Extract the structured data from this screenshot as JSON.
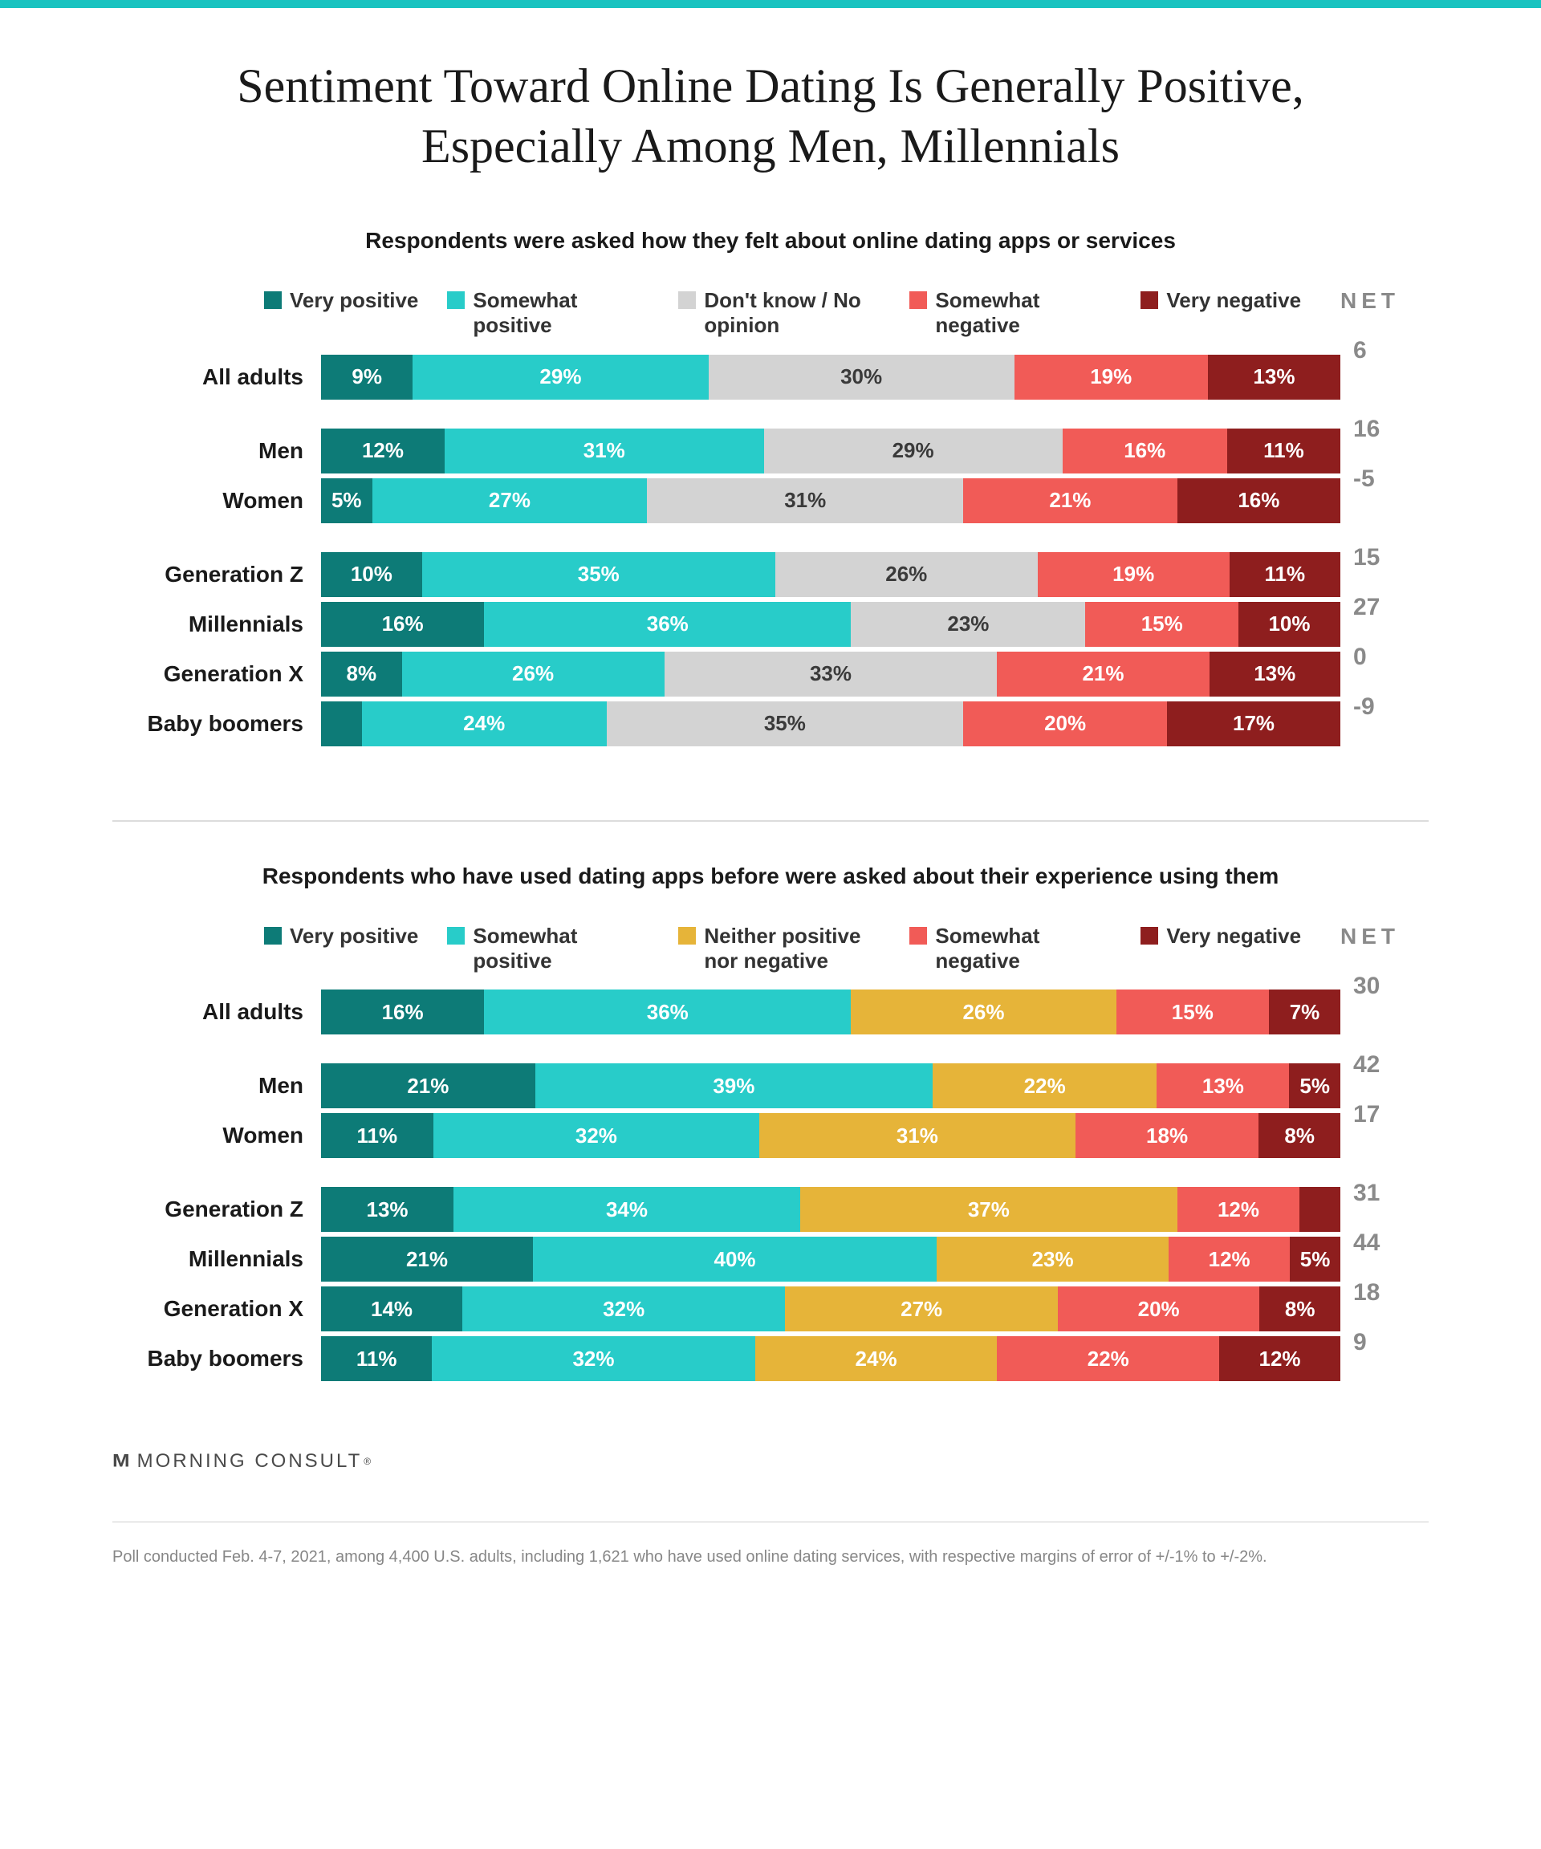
{
  "accent_bar_color": "#19c3c0",
  "background_color": "#ffffff",
  "title": "Sentiment Toward Online Dating Is Generally Positive, Especially Among Men, Millennials",
  "title_color": "#1a1a1a",
  "title_fontsize": 60,
  "brand": "MORNING CONSULT",
  "brand_color": "#4a4a4a",
  "footnote": "Poll conducted Feb. 4-7, 2021, among 4,400 U.S. adults, including 1,621 who have used online dating services, with respective margins of error of +/-1% to +/-2%.",
  "footnote_color": "#878787",
  "net_header": "NET",
  "net_color": "#8a8a8a",
  "row_label_fontsize": 28,
  "seg_fontsize": 26,
  "seg_text_light": "#ffffff",
  "seg_text_dark": "#3a3a3a",
  "sections": [
    {
      "subtitle": "Respondents were asked how they felt about online dating apps or services",
      "legend": [
        {
          "label": "Very positive",
          "color": "#0d7b77"
        },
        {
          "label": "Somewhat positive",
          "color": "#28ccc9"
        },
        {
          "label": "Don't know / No opinion",
          "color": "#d3d3d3"
        },
        {
          "label": "Somewhat negative",
          "color": "#f15b57"
        },
        {
          "label": "Very negative",
          "color": "#8e1e1e"
        }
      ],
      "groups": [
        [
          {
            "label": "All adults",
            "net": "6",
            "segs": [
              {
                "v": 9,
                "t": "9%",
                "c": "#0d7b77",
                "tc": "#ffffff"
              },
              {
                "v": 29,
                "t": "29%",
                "c": "#28ccc9",
                "tc": "#ffffff"
              },
              {
                "v": 30,
                "t": "30%",
                "c": "#d3d3d3",
                "tc": "#3a3a3a"
              },
              {
                "v": 19,
                "t": "19%",
                "c": "#f15b57",
                "tc": "#ffffff"
              },
              {
                "v": 13,
                "t": "13%",
                "c": "#8e1e1e",
                "tc": "#ffffff"
              }
            ]
          }
        ],
        [
          {
            "label": "Men",
            "net": "16",
            "segs": [
              {
                "v": 12,
                "t": "12%",
                "c": "#0d7b77",
                "tc": "#ffffff"
              },
              {
                "v": 31,
                "t": "31%",
                "c": "#28ccc9",
                "tc": "#ffffff"
              },
              {
                "v": 29,
                "t": "29%",
                "c": "#d3d3d3",
                "tc": "#3a3a3a"
              },
              {
                "v": 16,
                "t": "16%",
                "c": "#f15b57",
                "tc": "#ffffff"
              },
              {
                "v": 11,
                "t": "11%",
                "c": "#8e1e1e",
                "tc": "#ffffff"
              }
            ]
          },
          {
            "label": "Women",
            "net": "-5",
            "segs": [
              {
                "v": 5,
                "t": "5%",
                "c": "#0d7b77",
                "tc": "#ffffff"
              },
              {
                "v": 27,
                "t": "27%",
                "c": "#28ccc9",
                "tc": "#ffffff"
              },
              {
                "v": 31,
                "t": "31%",
                "c": "#d3d3d3",
                "tc": "#3a3a3a"
              },
              {
                "v": 21,
                "t": "21%",
                "c": "#f15b57",
                "tc": "#ffffff"
              },
              {
                "v": 16,
                "t": "16%",
                "c": "#8e1e1e",
                "tc": "#ffffff"
              }
            ]
          }
        ],
        [
          {
            "label": "Generation Z",
            "net": "15",
            "segs": [
              {
                "v": 10,
                "t": "10%",
                "c": "#0d7b77",
                "tc": "#ffffff"
              },
              {
                "v": 35,
                "t": "35%",
                "c": "#28ccc9",
                "tc": "#ffffff"
              },
              {
                "v": 26,
                "t": "26%",
                "c": "#d3d3d3",
                "tc": "#3a3a3a"
              },
              {
                "v": 19,
                "t": "19%",
                "c": "#f15b57",
                "tc": "#ffffff"
              },
              {
                "v": 11,
                "t": "11%",
                "c": "#8e1e1e",
                "tc": "#ffffff"
              }
            ]
          },
          {
            "label": "Millennials",
            "net": "27",
            "segs": [
              {
                "v": 16,
                "t": "16%",
                "c": "#0d7b77",
                "tc": "#ffffff"
              },
              {
                "v": 36,
                "t": "36%",
                "c": "#28ccc9",
                "tc": "#ffffff"
              },
              {
                "v": 23,
                "t": "23%",
                "c": "#d3d3d3",
                "tc": "#3a3a3a"
              },
              {
                "v": 15,
                "t": "15%",
                "c": "#f15b57",
                "tc": "#ffffff"
              },
              {
                "v": 10,
                "t": "10%",
                "c": "#8e1e1e",
                "tc": "#ffffff"
              }
            ]
          },
          {
            "label": "Generation X",
            "net": "0",
            "segs": [
              {
                "v": 8,
                "t": "8%",
                "c": "#0d7b77",
                "tc": "#ffffff"
              },
              {
                "v": 26,
                "t": "26%",
                "c": "#28ccc9",
                "tc": "#ffffff"
              },
              {
                "v": 33,
                "t": "33%",
                "c": "#d3d3d3",
                "tc": "#3a3a3a"
              },
              {
                "v": 21,
                "t": "21%",
                "c": "#f15b57",
                "tc": "#ffffff"
              },
              {
                "v": 13,
                "t": "13%",
                "c": "#8e1e1e",
                "tc": "#ffffff"
              }
            ]
          },
          {
            "label": "Baby boomers",
            "net": "-9",
            "segs": [
              {
                "v": 4,
                "t": "",
                "c": "#0d7b77",
                "tc": "#ffffff"
              },
              {
                "v": 24,
                "t": "24%",
                "c": "#28ccc9",
                "tc": "#ffffff"
              },
              {
                "v": 35,
                "t": "35%",
                "c": "#d3d3d3",
                "tc": "#3a3a3a"
              },
              {
                "v": 20,
                "t": "20%",
                "c": "#f15b57",
                "tc": "#ffffff"
              },
              {
                "v": 17,
                "t": "17%",
                "c": "#8e1e1e",
                "tc": "#ffffff"
              }
            ]
          }
        ]
      ]
    },
    {
      "subtitle": "Respondents who have used dating apps before were asked about their experience using them",
      "legend": [
        {
          "label": "Very positive",
          "color": "#0d7b77"
        },
        {
          "label": "Somewhat positive",
          "color": "#28ccc9"
        },
        {
          "label": "Neither positive nor negative",
          "color": "#e6b439"
        },
        {
          "label": "Somewhat negative",
          "color": "#f15b57"
        },
        {
          "label": "Very negative",
          "color": "#8e1e1e"
        }
      ],
      "groups": [
        [
          {
            "label": "All adults",
            "net": "30",
            "segs": [
              {
                "v": 16,
                "t": "16%",
                "c": "#0d7b77",
                "tc": "#ffffff"
              },
              {
                "v": 36,
                "t": "36%",
                "c": "#28ccc9",
                "tc": "#ffffff"
              },
              {
                "v": 26,
                "t": "26%",
                "c": "#e6b439",
                "tc": "#ffffff"
              },
              {
                "v": 15,
                "t": "15%",
                "c": "#f15b57",
                "tc": "#ffffff"
              },
              {
                "v": 7,
                "t": "7%",
                "c": "#8e1e1e",
                "tc": "#ffffff"
              }
            ]
          }
        ],
        [
          {
            "label": "Men",
            "net": "42",
            "segs": [
              {
                "v": 21,
                "t": "21%",
                "c": "#0d7b77",
                "tc": "#ffffff"
              },
              {
                "v": 39,
                "t": "39%",
                "c": "#28ccc9",
                "tc": "#ffffff"
              },
              {
                "v": 22,
                "t": "22%",
                "c": "#e6b439",
                "tc": "#ffffff"
              },
              {
                "v": 13,
                "t": "13%",
                "c": "#f15b57",
                "tc": "#ffffff"
              },
              {
                "v": 5,
                "t": "5%",
                "c": "#8e1e1e",
                "tc": "#ffffff"
              }
            ]
          },
          {
            "label": "Women",
            "net": "17",
            "segs": [
              {
                "v": 11,
                "t": "11%",
                "c": "#0d7b77",
                "tc": "#ffffff"
              },
              {
                "v": 32,
                "t": "32%",
                "c": "#28ccc9",
                "tc": "#ffffff"
              },
              {
                "v": 31,
                "t": "31%",
                "c": "#e6b439",
                "tc": "#ffffff"
              },
              {
                "v": 18,
                "t": "18%",
                "c": "#f15b57",
                "tc": "#ffffff"
              },
              {
                "v": 8,
                "t": "8%",
                "c": "#8e1e1e",
                "tc": "#ffffff"
              }
            ]
          }
        ],
        [
          {
            "label": "Generation Z",
            "net": "31",
            "segs": [
              {
                "v": 13,
                "t": "13%",
                "c": "#0d7b77",
                "tc": "#ffffff"
              },
              {
                "v": 34,
                "t": "34%",
                "c": "#28ccc9",
                "tc": "#ffffff"
              },
              {
                "v": 37,
                "t": "37%",
                "c": "#e6b439",
                "tc": "#ffffff"
              },
              {
                "v": 12,
                "t": "12%",
                "c": "#f15b57",
                "tc": "#ffffff"
              },
              {
                "v": 4,
                "t": "",
                "c": "#8e1e1e",
                "tc": "#ffffff"
              }
            ]
          },
          {
            "label": "Millennials",
            "net": "44",
            "segs": [
              {
                "v": 21,
                "t": "21%",
                "c": "#0d7b77",
                "tc": "#ffffff"
              },
              {
                "v": 40,
                "t": "40%",
                "c": "#28ccc9",
                "tc": "#ffffff"
              },
              {
                "v": 23,
                "t": "23%",
                "c": "#e6b439",
                "tc": "#ffffff"
              },
              {
                "v": 12,
                "t": "12%",
                "c": "#f15b57",
                "tc": "#ffffff"
              },
              {
                "v": 5,
                "t": "5%",
                "c": "#8e1e1e",
                "tc": "#ffffff"
              }
            ]
          },
          {
            "label": "Generation X",
            "net": "18",
            "segs": [
              {
                "v": 14,
                "t": "14%",
                "c": "#0d7b77",
                "tc": "#ffffff"
              },
              {
                "v": 32,
                "t": "32%",
                "c": "#28ccc9",
                "tc": "#ffffff"
              },
              {
                "v": 27,
                "t": "27%",
                "c": "#e6b439",
                "tc": "#ffffff"
              },
              {
                "v": 20,
                "t": "20%",
                "c": "#f15b57",
                "tc": "#ffffff"
              },
              {
                "v": 8,
                "t": "8%",
                "c": "#8e1e1e",
                "tc": "#ffffff"
              }
            ]
          },
          {
            "label": "Baby boomers",
            "net": "9",
            "segs": [
              {
                "v": 11,
                "t": "11%",
                "c": "#0d7b77",
                "tc": "#ffffff"
              },
              {
                "v": 32,
                "t": "32%",
                "c": "#28ccc9",
                "tc": "#ffffff"
              },
              {
                "v": 24,
                "t": "24%",
                "c": "#e6b439",
                "tc": "#ffffff"
              },
              {
                "v": 22,
                "t": "22%",
                "c": "#f15b57",
                "tc": "#ffffff"
              },
              {
                "v": 12,
                "t": "12%",
                "c": "#8e1e1e",
                "tc": "#ffffff"
              }
            ]
          }
        ]
      ]
    }
  ]
}
